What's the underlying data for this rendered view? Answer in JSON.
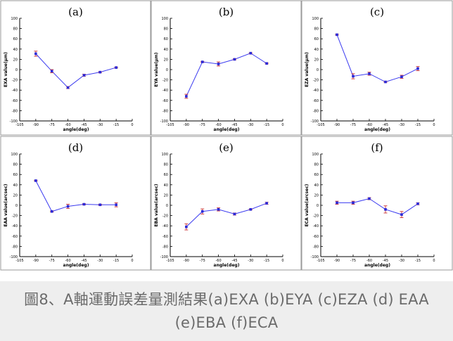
{
  "chart_data": [
    {
      "type": "line",
      "panel_label": "(a)",
      "xlabel": "angle(deg)",
      "ylabel": "EXA value(μm)",
      "xlim": [
        -105,
        0
      ],
      "ylim": [
        -100,
        100
      ],
      "xticks": [
        -105,
        -90,
        -75,
        -60,
        -45,
        -30,
        -15,
        0
      ],
      "yticks": [
        -100,
        -80,
        -60,
        -40,
        -20,
        0,
        20,
        40,
        60,
        80,
        100
      ],
      "series": [
        {
          "name": "EXA",
          "x": [
            -90,
            -75,
            -60,
            -45,
            -30,
            -15
          ],
          "values": [
            31,
            -3,
            -35,
            -11,
            -5,
            4
          ],
          "errors": [
            5,
            3,
            2,
            2,
            1,
            1
          ]
        }
      ]
    },
    {
      "type": "line",
      "panel_label": "(b)",
      "xlabel": "angle(deg)",
      "ylabel": "EYA value(μm)",
      "xlim": [
        -105,
        0
      ],
      "ylim": [
        -100,
        100
      ],
      "xticks": [
        -105,
        -90,
        -75,
        -60,
        -45,
        -30,
        -15,
        0
      ],
      "yticks": [
        -100,
        -80,
        -60,
        -40,
        -20,
        0,
        20,
        40,
        60,
        80,
        100
      ],
      "series": [
        {
          "name": "EYA",
          "x": [
            -90,
            -75,
            -60,
            -45,
            -30,
            -15
          ],
          "values": [
            -52,
            15,
            11,
            20,
            32,
            12
          ],
          "errors": [
            4,
            1,
            4,
            1,
            1,
            1
          ]
        }
      ]
    },
    {
      "type": "line",
      "panel_label": "(c)",
      "xlabel": "angle(deg)",
      "ylabel": "EZA value(μm)",
      "xlim": [
        -105,
        0
      ],
      "ylim": [
        -100,
        100
      ],
      "xticks": [
        -105,
        -90,
        -75,
        -60,
        -45,
        -30,
        -15,
        0
      ],
      "yticks": [
        -100,
        -80,
        -60,
        -40,
        -20,
        0,
        20,
        40,
        60,
        80,
        100
      ],
      "series": [
        {
          "name": "EZA",
          "x": [
            -90,
            -75,
            -60,
            -45,
            -30,
            -15
          ],
          "values": [
            68,
            -13,
            -8,
            -24,
            -14,
            2
          ],
          "errors": [
            1,
            5,
            3,
            1,
            3,
            4
          ]
        }
      ]
    },
    {
      "type": "line",
      "panel_label": "(d)",
      "xlabel": "angle(deg)",
      "ylabel": "EAA value(arcsec)",
      "xlim": [
        -105,
        0
      ],
      "ylim": [
        -100,
        100
      ],
      "xticks": [
        -105,
        -90,
        -75,
        -60,
        -45,
        -30,
        -15,
        0
      ],
      "yticks": [
        -100,
        -80,
        -60,
        -40,
        -20,
        0,
        20,
        40,
        60,
        80,
        100
      ],
      "series": [
        {
          "name": "EAA",
          "x": [
            -90,
            -75,
            -60,
            -45,
            -30,
            -15
          ],
          "values": [
            48,
            -12,
            -2,
            2,
            1,
            1
          ],
          "errors": [
            1,
            1,
            4,
            1,
            1,
            4
          ]
        }
      ]
    },
    {
      "type": "line",
      "panel_label": "(e)",
      "xlabel": "angle(deg)",
      "ylabel": "EBA value(arcsec)",
      "xlim": [
        -105,
        0
      ],
      "ylim": [
        -100,
        100
      ],
      "xticks": [
        -105,
        -90,
        -75,
        -60,
        -45,
        -30,
        -15,
        0
      ],
      "yticks": [
        -100,
        -80,
        -60,
        -40,
        -20,
        0,
        20,
        40,
        60,
        80,
        100
      ],
      "series": [
        {
          "name": "EBA",
          "x": [
            -90,
            -75,
            -60,
            -45,
            -30,
            -15
          ],
          "values": [
            -42,
            -12,
            -8,
            -17,
            -8,
            4
          ],
          "errors": [
            6,
            5,
            3,
            2,
            1,
            2
          ]
        }
      ]
    },
    {
      "type": "line",
      "panel_label": "(f)",
      "xlabel": "angle(deg)",
      "ylabel": "ECA value(arcsec)",
      "xlim": [
        -105,
        0
      ],
      "ylim": [
        -100,
        100
      ],
      "xticks": [
        -105,
        -90,
        -75,
        -60,
        -45,
        -30,
        -15,
        0
      ],
      "yticks": [
        -100,
        -80,
        -60,
        -40,
        -20,
        0,
        20,
        40,
        60,
        80,
        100
      ],
      "series": [
        {
          "name": "ECA",
          "x": [
            -90,
            -75,
            -60,
            -45,
            -30,
            -15
          ],
          "values": [
            5,
            5,
            13,
            -8,
            -18,
            3
          ],
          "errors": [
            3,
            3,
            2,
            7,
            6,
            2
          ]
        }
      ]
    }
  ],
  "caption": "圖8、A軸運動誤差量測結果(a)EXA (b)EYA (c)EZA (d) EAA (e)EBA (f)ECA",
  "colors": {
    "line": "#3b3bf0",
    "marker": "#2a2ad8",
    "errorbar": "#cc3333",
    "axis": "#000000",
    "frame": "#9a9a9a",
    "caption_bg": "#eeeeee",
    "caption_text": "#6b6b6b"
  }
}
